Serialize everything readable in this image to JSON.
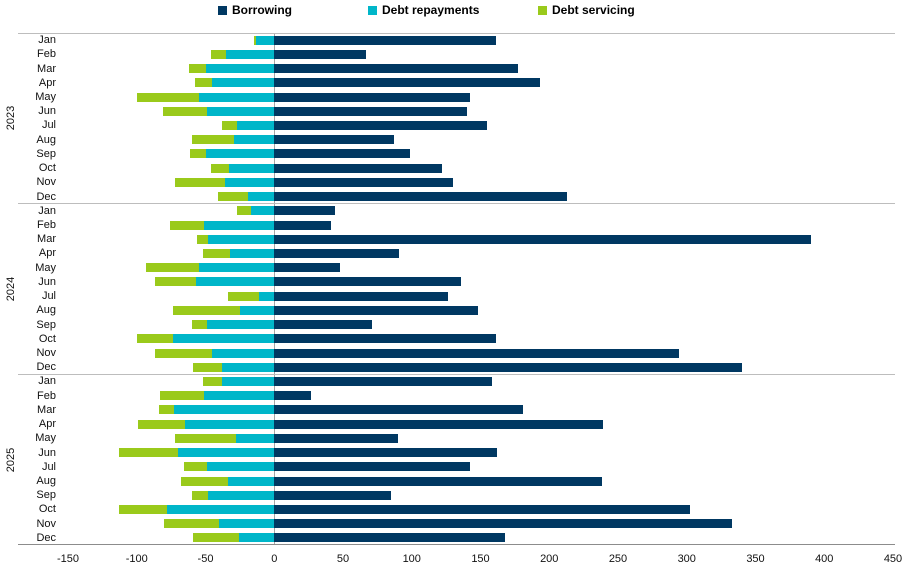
{
  "colors": {
    "borrowing": "#003862",
    "debt_repayments": "#00b6c9",
    "debt_servicing": "#9aca1b",
    "zero_line": "#a6a6a6",
    "separator": "#bdbdbd",
    "axis_line": "#8c8c8c"
  },
  "legend": {
    "items": [
      {
        "label": "Borrowing",
        "color": "#003862"
      },
      {
        "label": "Debt repayments",
        "color": "#00b6c9"
      },
      {
        "label": "Debt servicing",
        "color": "#9aca1b"
      }
    ]
  },
  "chart_data": {
    "type": "bar",
    "orientation": "horizontal",
    "stacked": true,
    "title": "",
    "xlabel": "",
    "ylabel": "",
    "xlim": [
      -150,
      450
    ],
    "xticks": [
      -150,
      -100,
      -50,
      0,
      50,
      100,
      150,
      200,
      250,
      300,
      350,
      400,
      450
    ],
    "grid": false,
    "legend_position": "top",
    "series_names": [
      "Borrowing",
      "Debt repayments",
      "Debt servicing"
    ],
    "years": [
      {
        "year": "2023",
        "rows": [
          {
            "month": "Jan",
            "borrowing": 161,
            "debt_repayments": -13,
            "debt_servicing": -2
          },
          {
            "month": "Feb",
            "borrowing": 67,
            "debt_repayments": -35,
            "debt_servicing": -11
          },
          {
            "month": "Mar",
            "borrowing": 177,
            "debt_repayments": -50,
            "debt_servicing": -12
          },
          {
            "month": "Apr",
            "borrowing": 193,
            "debt_repayments": -45,
            "debt_servicing": -13
          },
          {
            "month": "May",
            "borrowing": 142,
            "debt_repayments": -55,
            "debt_servicing": -45
          },
          {
            "month": "Jun",
            "borrowing": 140,
            "debt_repayments": -49,
            "debt_servicing": -32
          },
          {
            "month": "Jul",
            "borrowing": 155,
            "debt_repayments": -27,
            "debt_servicing": -11
          },
          {
            "month": "Aug",
            "borrowing": 87,
            "debt_repayments": -29,
            "debt_servicing": -31
          },
          {
            "month": "Sep",
            "borrowing": 99,
            "debt_repayments": -50,
            "debt_servicing": -11
          },
          {
            "month": "Oct",
            "borrowing": 122,
            "debt_repayments": -33,
            "debt_servicing": -13
          },
          {
            "month": "Nov",
            "borrowing": 130,
            "debt_repayments": -36,
            "debt_servicing": -36
          },
          {
            "month": "Dec",
            "borrowing": 213,
            "debt_repayments": -19,
            "debt_servicing": -22
          }
        ]
      },
      {
        "year": "2024",
        "rows": [
          {
            "month": "Jan",
            "borrowing": 44,
            "debt_repayments": -17,
            "debt_servicing": -10
          },
          {
            "month": "Feb",
            "borrowing": 41,
            "debt_repayments": -51,
            "debt_servicing": -25
          },
          {
            "month": "Mar",
            "borrowing": 390,
            "debt_repayments": -48,
            "debt_servicing": -8
          },
          {
            "month": "Apr",
            "borrowing": 91,
            "debt_repayments": -32,
            "debt_servicing": -20
          },
          {
            "month": "May",
            "borrowing": 48,
            "debt_repayments": -55,
            "debt_servicing": -38
          },
          {
            "month": "Jun",
            "borrowing": 136,
            "debt_repayments": -57,
            "debt_servicing": -30
          },
          {
            "month": "Jul",
            "borrowing": 126,
            "debt_repayments": -11,
            "debt_servicing": -23
          },
          {
            "month": "Aug",
            "borrowing": 148,
            "debt_repayments": -25,
            "debt_servicing": -49
          },
          {
            "month": "Sep",
            "borrowing": 71,
            "debt_repayments": -49,
            "debt_servicing": -11
          },
          {
            "month": "Oct",
            "borrowing": 161,
            "debt_repayments": -74,
            "debt_servicing": -26
          },
          {
            "month": "Nov",
            "borrowing": 294,
            "debt_repayments": -45,
            "debt_servicing": -42
          },
          {
            "month": "Dec",
            "borrowing": 340,
            "debt_repayments": -38,
            "debt_servicing": -21
          }
        ]
      },
      {
        "year": "2025",
        "rows": [
          {
            "month": "Jan",
            "borrowing": 158,
            "debt_repayments": -38,
            "debt_servicing": -14
          },
          {
            "month": "Feb",
            "borrowing": 27,
            "debt_repayments": -51,
            "debt_servicing": -32
          },
          {
            "month": "Mar",
            "borrowing": 181,
            "debt_repayments": -73,
            "debt_servicing": -11
          },
          {
            "month": "Apr",
            "borrowing": 239,
            "debt_repayments": -65,
            "debt_servicing": -34
          },
          {
            "month": "May",
            "borrowing": 90,
            "debt_repayments": -28,
            "debt_servicing": -44
          },
          {
            "month": "Jun",
            "borrowing": 162,
            "debt_repayments": -70,
            "debt_servicing": -43
          },
          {
            "month": "Jul",
            "borrowing": 142,
            "debt_repayments": -49,
            "debt_servicing": -17
          },
          {
            "month": "Aug",
            "borrowing": 238,
            "debt_repayments": -34,
            "debt_servicing": -34
          },
          {
            "month": "Sep",
            "borrowing": 85,
            "debt_repayments": -48,
            "debt_servicing": -12
          },
          {
            "month": "Oct",
            "borrowing": 302,
            "debt_repayments": -78,
            "debt_servicing": -35
          },
          {
            "month": "Nov",
            "borrowing": 333,
            "debt_repayments": -40,
            "debt_servicing": -40
          },
          {
            "month": "Dec",
            "borrowing": 168,
            "debt_repayments": -26,
            "debt_servicing": -33
          }
        ]
      }
    ]
  }
}
